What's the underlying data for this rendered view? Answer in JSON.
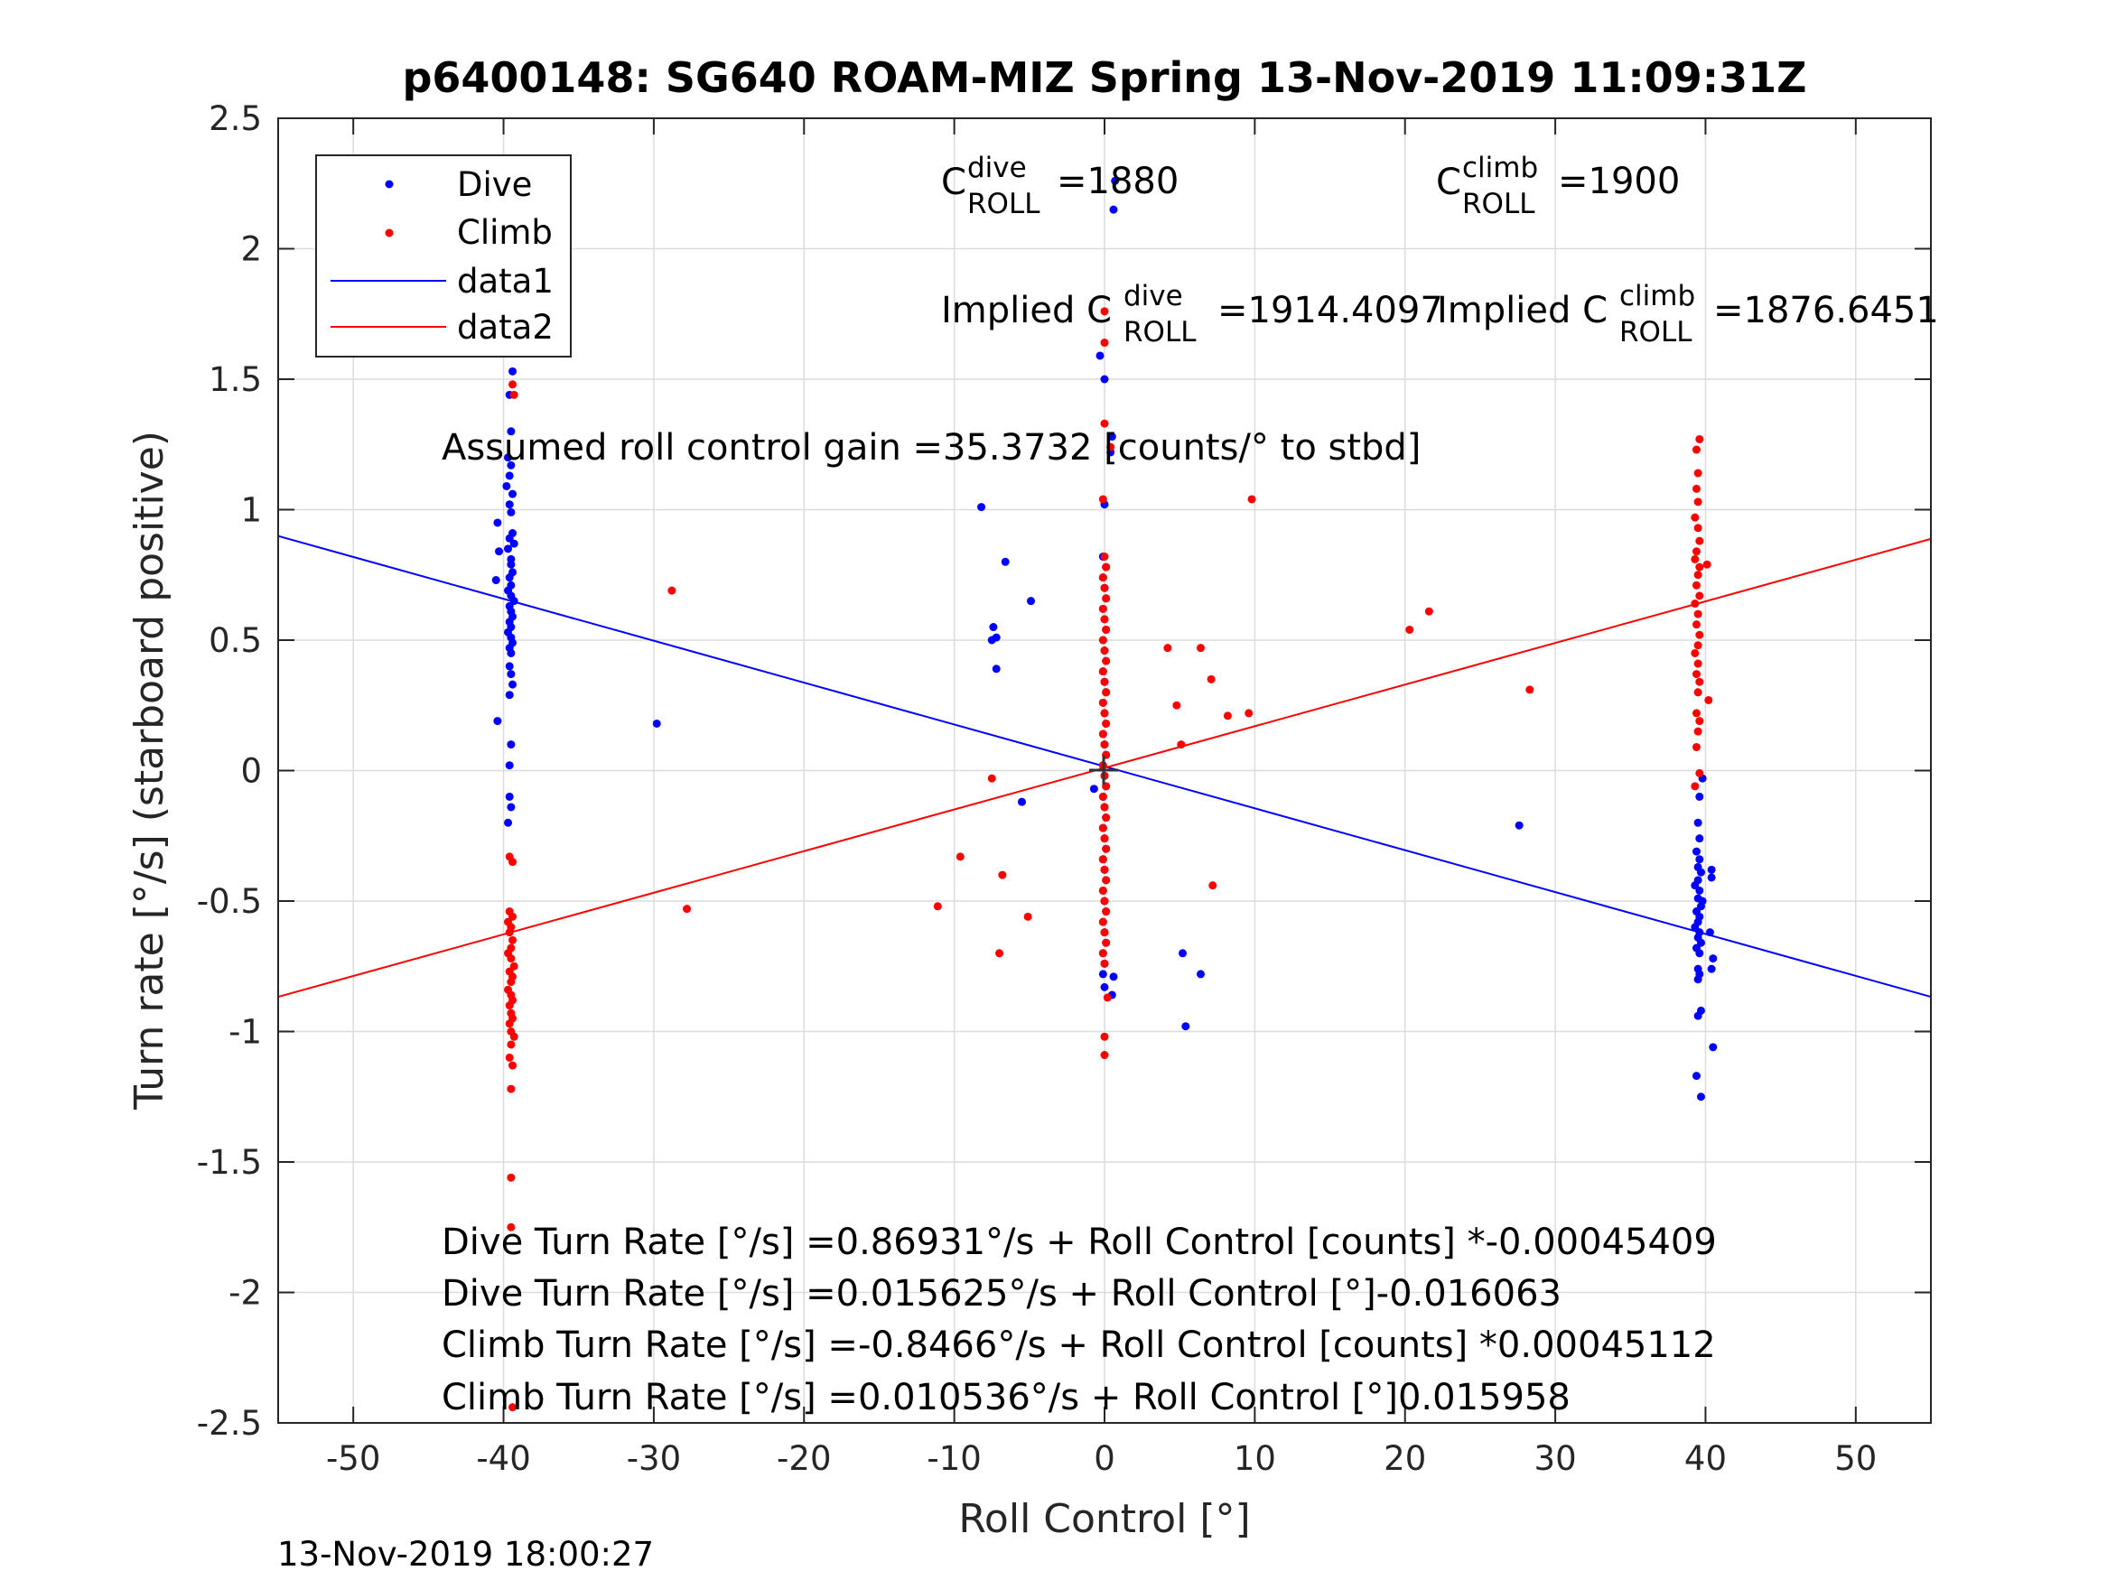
{
  "footer_timestamp": "13-Nov-2019 18:00:27",
  "chart_data": {
    "type": "scatter",
    "title": "p6400148: SG640 ROAM-MIZ Spring 13-Nov-2019 11:09:31Z",
    "xlabel": "Roll Control [°]",
    "ylabel": "Turn rate [°/s] (starboard positive)",
    "xlim": [
      -55,
      55
    ],
    "ylim": [
      -2.5,
      2.5
    ],
    "xticks": [
      -50,
      -40,
      -30,
      -20,
      -10,
      0,
      10,
      20,
      30,
      40,
      50
    ],
    "yticks": [
      -2.5,
      -2,
      -1.5,
      -1,
      -0.5,
      0,
      0.5,
      1,
      1.5,
      2,
      2.5
    ],
    "xtick_labels": [
      "-50",
      "-40",
      "-30",
      "-20",
      "-10",
      "0",
      "10",
      "20",
      "30",
      "40",
      "50"
    ],
    "ytick_labels": [
      "-2.5",
      "-2",
      "-1.5",
      "-1",
      "-0.5",
      "0",
      "0.5",
      "1",
      "1.5",
      "2",
      "2.5"
    ],
    "grid": true,
    "legend_position": "top-left",
    "legend": [
      "Dive",
      "Climb",
      "data1",
      "data2"
    ],
    "colors": {
      "dive": "#0000ff",
      "climb": "#ff0000"
    },
    "series": [
      {
        "name": "Dive",
        "kind": "points",
        "color": "#0000ff",
        "points": [
          [
            -39.5,
            1.86
          ],
          [
            -39.4,
            1.53
          ],
          [
            -39.6,
            1.44
          ],
          [
            -39.5,
            1.3
          ],
          [
            -39.7,
            1.2
          ],
          [
            -39.5,
            1.17
          ],
          [
            -39.6,
            1.13
          ],
          [
            -39.8,
            1.09
          ],
          [
            -39.4,
            1.06
          ],
          [
            -39.6,
            1.02
          ],
          [
            -39.5,
            0.99
          ],
          [
            -40.4,
            0.95
          ],
          [
            -39.4,
            0.91
          ],
          [
            -39.6,
            0.89
          ],
          [
            -39.3,
            0.87
          ],
          [
            -39.7,
            0.85
          ],
          [
            -40.3,
            0.84
          ],
          [
            -39.5,
            0.81
          ],
          [
            -39.5,
            0.79
          ],
          [
            -39.4,
            0.76
          ],
          [
            -39.6,
            0.74
          ],
          [
            -40.5,
            0.73
          ],
          [
            -39.5,
            0.71
          ],
          [
            -39.7,
            0.69
          ],
          [
            -39.5,
            0.67
          ],
          [
            -39.3,
            0.65
          ],
          [
            -39.6,
            0.63
          ],
          [
            -39.5,
            0.61
          ],
          [
            -39.4,
            0.59
          ],
          [
            -39.6,
            0.57
          ],
          [
            -39.5,
            0.55
          ],
          [
            -39.7,
            0.53
          ],
          [
            -39.5,
            0.51
          ],
          [
            -39.4,
            0.49
          ],
          [
            -39.6,
            0.47
          ],
          [
            -39.5,
            0.45
          ],
          [
            -39.6,
            0.4
          ],
          [
            -39.5,
            0.37
          ],
          [
            -39.4,
            0.33
          ],
          [
            -39.6,
            0.29
          ],
          [
            -40.4,
            0.19
          ],
          [
            -39.5,
            0.1
          ],
          [
            -39.6,
            0.02
          ],
          [
            -39.6,
            -0.1
          ],
          [
            -39.5,
            -0.14
          ],
          [
            -39.7,
            -0.2
          ],
          [
            0.7,
            2.26
          ],
          [
            0.6,
            2.15
          ],
          [
            -0.3,
            1.59
          ],
          [
            0.0,
            1.5
          ],
          [
            0.5,
            1.28
          ],
          [
            0.4,
            1.22
          ],
          [
            0.0,
            1.02
          ],
          [
            -0.1,
            0.82
          ],
          [
            0.1,
            0.78
          ],
          [
            -0.1,
            0.74
          ],
          [
            0.0,
            0.7
          ],
          [
            0.1,
            0.66
          ],
          [
            -0.1,
            0.62
          ],
          [
            0.0,
            0.58
          ],
          [
            0.1,
            0.54
          ],
          [
            -0.1,
            0.5
          ],
          [
            0.0,
            0.46
          ],
          [
            0.1,
            0.42
          ],
          [
            -0.1,
            0.38
          ],
          [
            0.0,
            0.34
          ],
          [
            0.1,
            0.3
          ],
          [
            -0.1,
            0.26
          ],
          [
            0.0,
            0.22
          ],
          [
            0.1,
            0.18
          ],
          [
            -0.1,
            0.14
          ],
          [
            0.0,
            0.1
          ],
          [
            0.1,
            0.06
          ],
          [
            -0.1,
            0.02
          ],
          [
            0.0,
            -0.02
          ],
          [
            0.1,
            -0.06
          ],
          [
            -0.1,
            -0.1
          ],
          [
            0.0,
            -0.14
          ],
          [
            0.1,
            -0.18
          ],
          [
            -0.1,
            -0.22
          ],
          [
            0.0,
            -0.26
          ],
          [
            0.1,
            -0.3
          ],
          [
            -0.1,
            -0.34
          ],
          [
            0.0,
            -0.38
          ],
          [
            0.1,
            -0.42
          ],
          [
            -0.1,
            -0.46
          ],
          [
            0.0,
            -0.5
          ],
          [
            0.1,
            -0.54
          ],
          [
            -0.1,
            -0.58
          ],
          [
            0.0,
            -0.62
          ],
          [
            0.1,
            -0.66
          ],
          [
            -0.1,
            -0.7
          ],
          [
            0.0,
            -0.74
          ],
          [
            -0.1,
            -0.78
          ],
          [
            0.6,
            -0.79
          ],
          [
            0.0,
            -0.83
          ],
          [
            0.5,
            -0.86
          ],
          [
            -0.7,
            -0.07
          ],
          [
            -8.2,
            1.01
          ],
          [
            -6.6,
            0.8
          ],
          [
            -4.9,
            0.65
          ],
          [
            -7.4,
            0.55
          ],
          [
            -7.2,
            0.51
          ],
          [
            -7.5,
            0.5
          ],
          [
            -7.2,
            0.39
          ],
          [
            -29.8,
            0.18
          ],
          [
            -5.5,
            -0.12
          ],
          [
            5.2,
            -0.7
          ],
          [
            6.4,
            -0.78
          ],
          [
            5.4,
            -0.98
          ],
          [
            27.6,
            -0.21
          ],
          [
            39.8,
            -0.03
          ],
          [
            39.6,
            -0.1
          ],
          [
            39.5,
            -0.2
          ],
          [
            39.6,
            -0.26
          ],
          [
            39.4,
            -0.31
          ],
          [
            39.6,
            -0.34
          ],
          [
            39.5,
            -0.37
          ],
          [
            39.7,
            -0.39
          ],
          [
            39.5,
            -0.42
          ],
          [
            39.3,
            -0.44
          ],
          [
            39.6,
            -0.46
          ],
          [
            39.5,
            -0.49
          ],
          [
            39.7,
            -0.52
          ],
          [
            39.4,
            -0.54
          ],
          [
            39.6,
            -0.56
          ],
          [
            39.5,
            -0.58
          ],
          [
            39.3,
            -0.6
          ],
          [
            39.6,
            -0.62
          ],
          [
            40.3,
            -0.62
          ],
          [
            39.5,
            -0.64
          ],
          [
            39.7,
            -0.66
          ],
          [
            39.4,
            -0.68
          ],
          [
            39.6,
            -0.7
          ],
          [
            40.5,
            -0.72
          ],
          [
            39.5,
            -0.76
          ],
          [
            39.6,
            -0.78
          ],
          [
            40.4,
            -0.76
          ],
          [
            39.5,
            -0.8
          ],
          [
            39.7,
            -0.92
          ],
          [
            39.5,
            -0.94
          ],
          [
            40.5,
            -1.06
          ],
          [
            39.4,
            -1.17
          ],
          [
            39.7,
            -1.25
          ],
          [
            40.4,
            -0.38
          ],
          [
            40.4,
            -0.41
          ],
          [
            39.8,
            -0.5
          ]
        ]
      },
      {
        "name": "Climb",
        "kind": "points",
        "color": "#ff0000",
        "points": [
          [
            -39.4,
            1.48
          ],
          [
            -39.3,
            1.44
          ],
          [
            -39.6,
            -0.33
          ],
          [
            -39.4,
            -0.35
          ],
          [
            -39.6,
            -0.54
          ],
          [
            -39.4,
            -0.56
          ],
          [
            -39.7,
            -0.58
          ],
          [
            -39.5,
            -0.6
          ],
          [
            -39.6,
            -0.62
          ],
          [
            -39.4,
            -0.65
          ],
          [
            -39.5,
            -0.68
          ],
          [
            -39.7,
            -0.7
          ],
          [
            -39.5,
            -0.72
          ],
          [
            -39.3,
            -0.75
          ],
          [
            -39.6,
            -0.77
          ],
          [
            -39.4,
            -0.79
          ],
          [
            -39.5,
            -0.81
          ],
          [
            -39.7,
            -0.84
          ],
          [
            -39.5,
            -0.86
          ],
          [
            -39.4,
            -0.88
          ],
          [
            -39.6,
            -0.9
          ],
          [
            -39.5,
            -0.93
          ],
          [
            -39.4,
            -0.95
          ],
          [
            -39.6,
            -0.97
          ],
          [
            -39.5,
            -1.0
          ],
          [
            -39.3,
            -1.02
          ],
          [
            -39.5,
            -1.05
          ],
          [
            -39.6,
            -1.1
          ],
          [
            -39.4,
            -1.13
          ],
          [
            -39.5,
            -1.22
          ],
          [
            -39.5,
            -1.56
          ],
          [
            -39.5,
            -1.75
          ],
          [
            -39.4,
            -2.44
          ],
          [
            0.0,
            1.76
          ],
          [
            0.0,
            1.64
          ],
          [
            0.0,
            1.33
          ],
          [
            0.4,
            1.24
          ],
          [
            -0.1,
            1.04
          ],
          [
            0.0,
            0.82
          ],
          [
            0.1,
            0.78
          ],
          [
            -0.1,
            0.74
          ],
          [
            0.0,
            0.7
          ],
          [
            0.1,
            0.66
          ],
          [
            -0.1,
            0.62
          ],
          [
            0.0,
            0.58
          ],
          [
            0.1,
            0.54
          ],
          [
            -0.1,
            0.5
          ],
          [
            0.0,
            0.46
          ],
          [
            0.1,
            0.42
          ],
          [
            -0.1,
            0.38
          ],
          [
            0.0,
            0.34
          ],
          [
            0.1,
            0.3
          ],
          [
            -0.1,
            0.26
          ],
          [
            0.0,
            0.22
          ],
          [
            0.1,
            0.18
          ],
          [
            -0.1,
            0.14
          ],
          [
            0.0,
            0.1
          ],
          [
            0.1,
            0.06
          ],
          [
            -0.1,
            0.02
          ],
          [
            0.0,
            -0.02
          ],
          [
            0.1,
            -0.06
          ],
          [
            -0.1,
            -0.1
          ],
          [
            0.0,
            -0.14
          ],
          [
            0.1,
            -0.18
          ],
          [
            -0.1,
            -0.22
          ],
          [
            0.0,
            -0.26
          ],
          [
            0.1,
            -0.3
          ],
          [
            -0.1,
            -0.34
          ],
          [
            0.0,
            -0.38
          ],
          [
            0.1,
            -0.42
          ],
          [
            -0.1,
            -0.46
          ],
          [
            0.0,
            -0.5
          ],
          [
            0.1,
            -0.54
          ],
          [
            -0.1,
            -0.58
          ],
          [
            0.0,
            -0.62
          ],
          [
            0.1,
            -0.66
          ],
          [
            -0.1,
            -0.7
          ],
          [
            0.0,
            -0.74
          ],
          [
            0.2,
            -0.87
          ],
          [
            0.0,
            -1.02
          ],
          [
            0.0,
            -1.09
          ],
          [
            -28.8,
            0.69
          ],
          [
            -27.8,
            -0.53
          ],
          [
            -11.1,
            -0.52
          ],
          [
            -9.6,
            -0.33
          ],
          [
            -7.5,
            -0.03
          ],
          [
            -6.8,
            -0.4
          ],
          [
            -7.0,
            -0.7
          ],
          [
            -5.1,
            -0.56
          ],
          [
            4.2,
            0.47
          ],
          [
            4.8,
            0.25
          ],
          [
            5.1,
            0.1
          ],
          [
            6.4,
            0.47
          ],
          [
            7.1,
            0.35
          ],
          [
            8.2,
            0.21
          ],
          [
            9.6,
            0.22
          ],
          [
            9.8,
            1.04
          ],
          [
            7.2,
            -0.44
          ],
          [
            20.3,
            0.54
          ],
          [
            21.6,
            0.61
          ],
          [
            28.3,
            0.31
          ],
          [
            39.6,
            1.27
          ],
          [
            39.4,
            1.23
          ],
          [
            39.5,
            1.14
          ],
          [
            39.4,
            1.08
          ],
          [
            39.5,
            1.03
          ],
          [
            39.3,
            0.97
          ],
          [
            39.5,
            0.93
          ],
          [
            39.6,
            0.88
          ],
          [
            39.4,
            0.84
          ],
          [
            39.3,
            0.81
          ],
          [
            39.6,
            0.78
          ],
          [
            39.5,
            0.75
          ],
          [
            40.1,
            0.79
          ],
          [
            39.4,
            0.71
          ],
          [
            39.6,
            0.67
          ],
          [
            39.3,
            0.64
          ],
          [
            39.5,
            0.6
          ],
          [
            39.4,
            0.56
          ],
          [
            39.6,
            0.52
          ],
          [
            39.5,
            0.48
          ],
          [
            39.3,
            0.45
          ],
          [
            39.5,
            0.41
          ],
          [
            39.4,
            0.37
          ],
          [
            39.6,
            0.34
          ],
          [
            39.5,
            0.3
          ],
          [
            40.2,
            0.27
          ],
          [
            39.4,
            0.22
          ],
          [
            39.6,
            0.19
          ],
          [
            39.5,
            0.15
          ],
          [
            39.4,
            0.09
          ],
          [
            39.6,
            -0.01
          ],
          [
            39.3,
            -0.06
          ]
        ]
      },
      {
        "name": "data1",
        "kind": "line",
        "color": "#0000ff",
        "x": [
          -55,
          55
        ],
        "y": [
          0.899,
          -0.867
        ]
      },
      {
        "name": "data2",
        "kind": "line",
        "color": "#ff0000",
        "x": [
          -55,
          55
        ],
        "y": [
          -0.867,
          0.888
        ]
      }
    ],
    "annotations": {
      "c_dive": {
        "base": "C",
        "sup": "dive",
        "sub": "ROLL",
        "value": "=1880"
      },
      "c_climb": {
        "base": "C",
        "sup": "climb",
        "sub": "ROLL",
        "value": "=1900"
      },
      "implied_dive": {
        "prefix": "Implied C",
        "sup": "dive",
        "sub": "ROLL",
        "value": "=1914.4097"
      },
      "implied_climb": {
        "prefix": "Implied C",
        "sup": "climb",
        "sub": "ROLL",
        "value": "=1876.6451"
      },
      "gain": "Assumed roll control gain =35.3732 [counts/° to stbd]",
      "fit_lines": [
        "Dive Turn Rate [°/s] =0.86931°/s + Roll Control [counts] *-0.00045409",
        "Dive Turn Rate [°/s] =0.015625°/s + Roll Control [°]-0.016063",
        "Climb Turn Rate [°/s] =-0.8466°/s + Roll Control [counts] *0.00045112",
        "Climb Turn Rate [°/s] =0.010536°/s + Roll Control [°]0.015958"
      ]
    }
  }
}
